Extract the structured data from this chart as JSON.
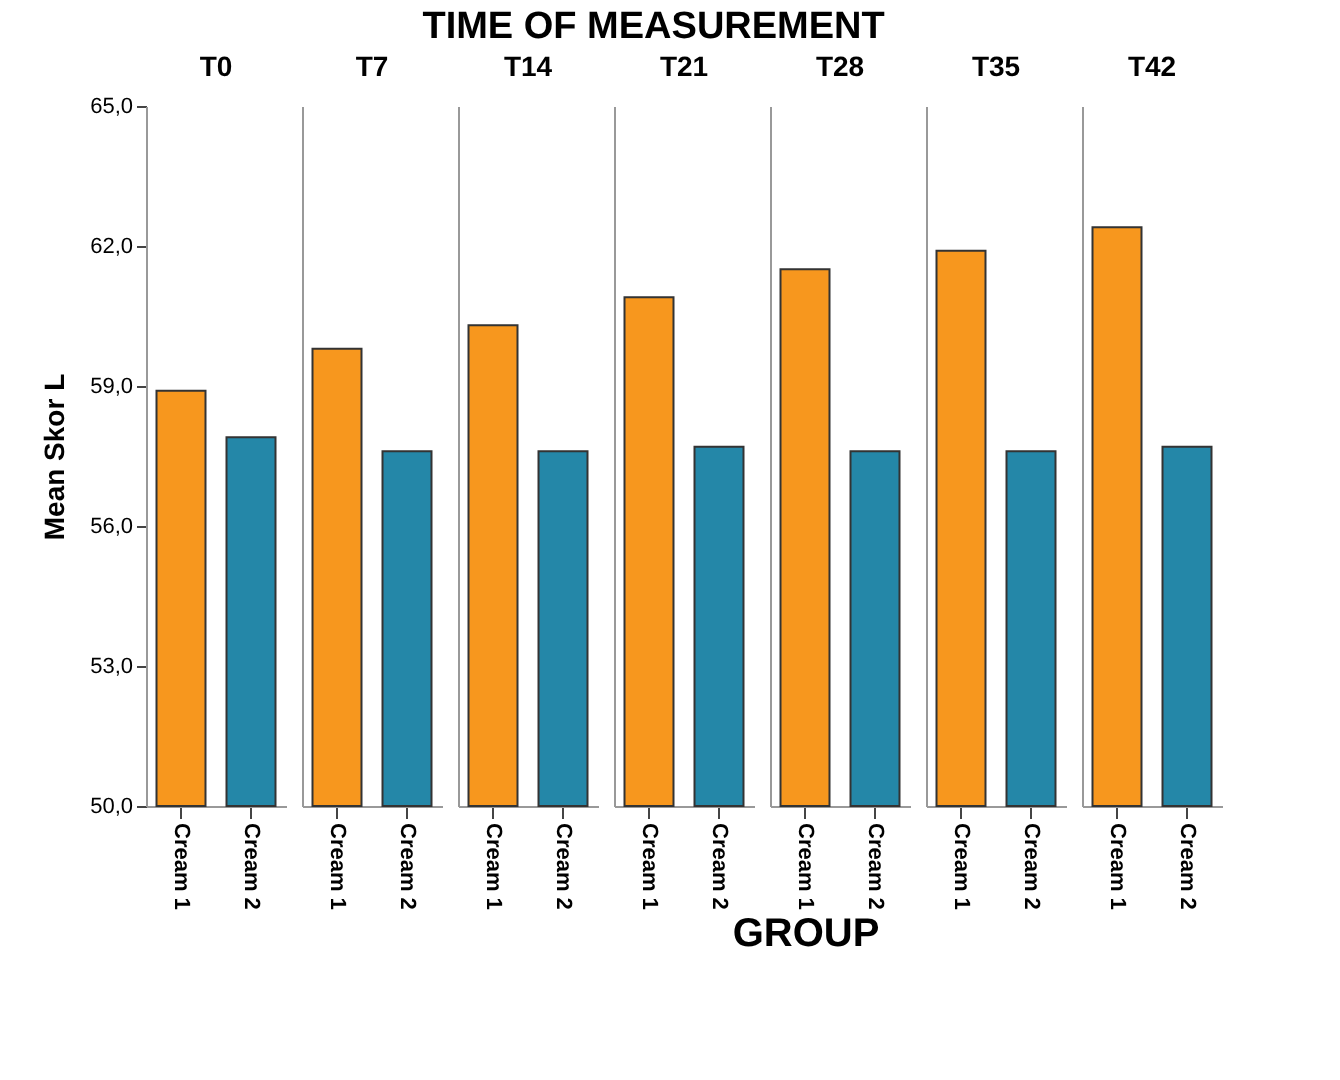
{
  "chart_data": [
    {
      "type": "bar",
      "title": "T0",
      "ylabel": "Mean Skor L",
      "annotations": [
        "TIME OF MEASUREMENT",
        "GROUP"
      ],
      "categories": [
        "Cream 1",
        "Cream 2"
      ],
      "values": [
        58.9,
        57.9
      ],
      "colors": [
        "#f7971e",
        "#2487a8"
      ],
      "ylim": [
        50,
        65
      ],
      "yticks": [
        {
          "value": 50,
          "label": "50,0"
        },
        {
          "value": 53,
          "label": "53,0"
        },
        {
          "value": 56,
          "label": "56,0"
        },
        {
          "value": 59,
          "label": "59,0"
        },
        {
          "value": 62,
          "label": "62,0"
        },
        {
          "value": 65,
          "label": "65,0"
        }
      ]
    },
    {
      "type": "bar",
      "title": "T7",
      "categories": [
        "Cream 1",
        "Cream 2"
      ],
      "values": [
        59.8,
        57.6
      ],
      "colors": [
        "#f7971e",
        "#2487a8"
      ],
      "ylim": [
        50,
        65
      ],
      "tick_labels": "x"
    },
    {
      "type": "bar",
      "title": "T14",
      "categories": [
        "Cream 1",
        "Cream 2"
      ],
      "values": [
        60.3,
        57.6
      ],
      "colors": [
        "#f7971e",
        "#2487a8"
      ],
      "ylim": [
        50,
        65
      ],
      "tick_labels": "x"
    },
    {
      "type": "bar",
      "title": "T21",
      "categories": [
        "Cream 1",
        "Cream 2"
      ],
      "values": [
        60.9,
        57.7
      ],
      "colors": [
        "#f7971e",
        "#2487a8"
      ],
      "ylim": [
        50,
        65
      ],
      "tick_labels": "x"
    },
    {
      "type": "bar",
      "title": "T28",
      "categories": [
        "Cream 1",
        "Cream 2"
      ],
      "values": [
        61.5,
        57.6
      ],
      "colors": [
        "#f7971e",
        "#2487a8"
      ],
      "ylim": [
        50,
        65
      ],
      "tick_labels": "x"
    },
    {
      "type": "bar",
      "title": "T35",
      "categories": [
        "Cream 1",
        "Cream 2"
      ],
      "values": [
        61.9,
        57.6
      ],
      "colors": [
        "#f7971e",
        "#2487a8"
      ],
      "ylim": [
        50,
        65
      ],
      "tick_labels": "x"
    },
    {
      "type": "bar",
      "title": "T42",
      "categories": [
        "Cream 1",
        "Cream 2"
      ],
      "values": [
        62.4,
        57.7
      ],
      "colors": [
        "#f7971e",
        "#2487a8"
      ],
      "ylim": [
        50,
        65
      ],
      "tick_labels": "x"
    }
  ]
}
